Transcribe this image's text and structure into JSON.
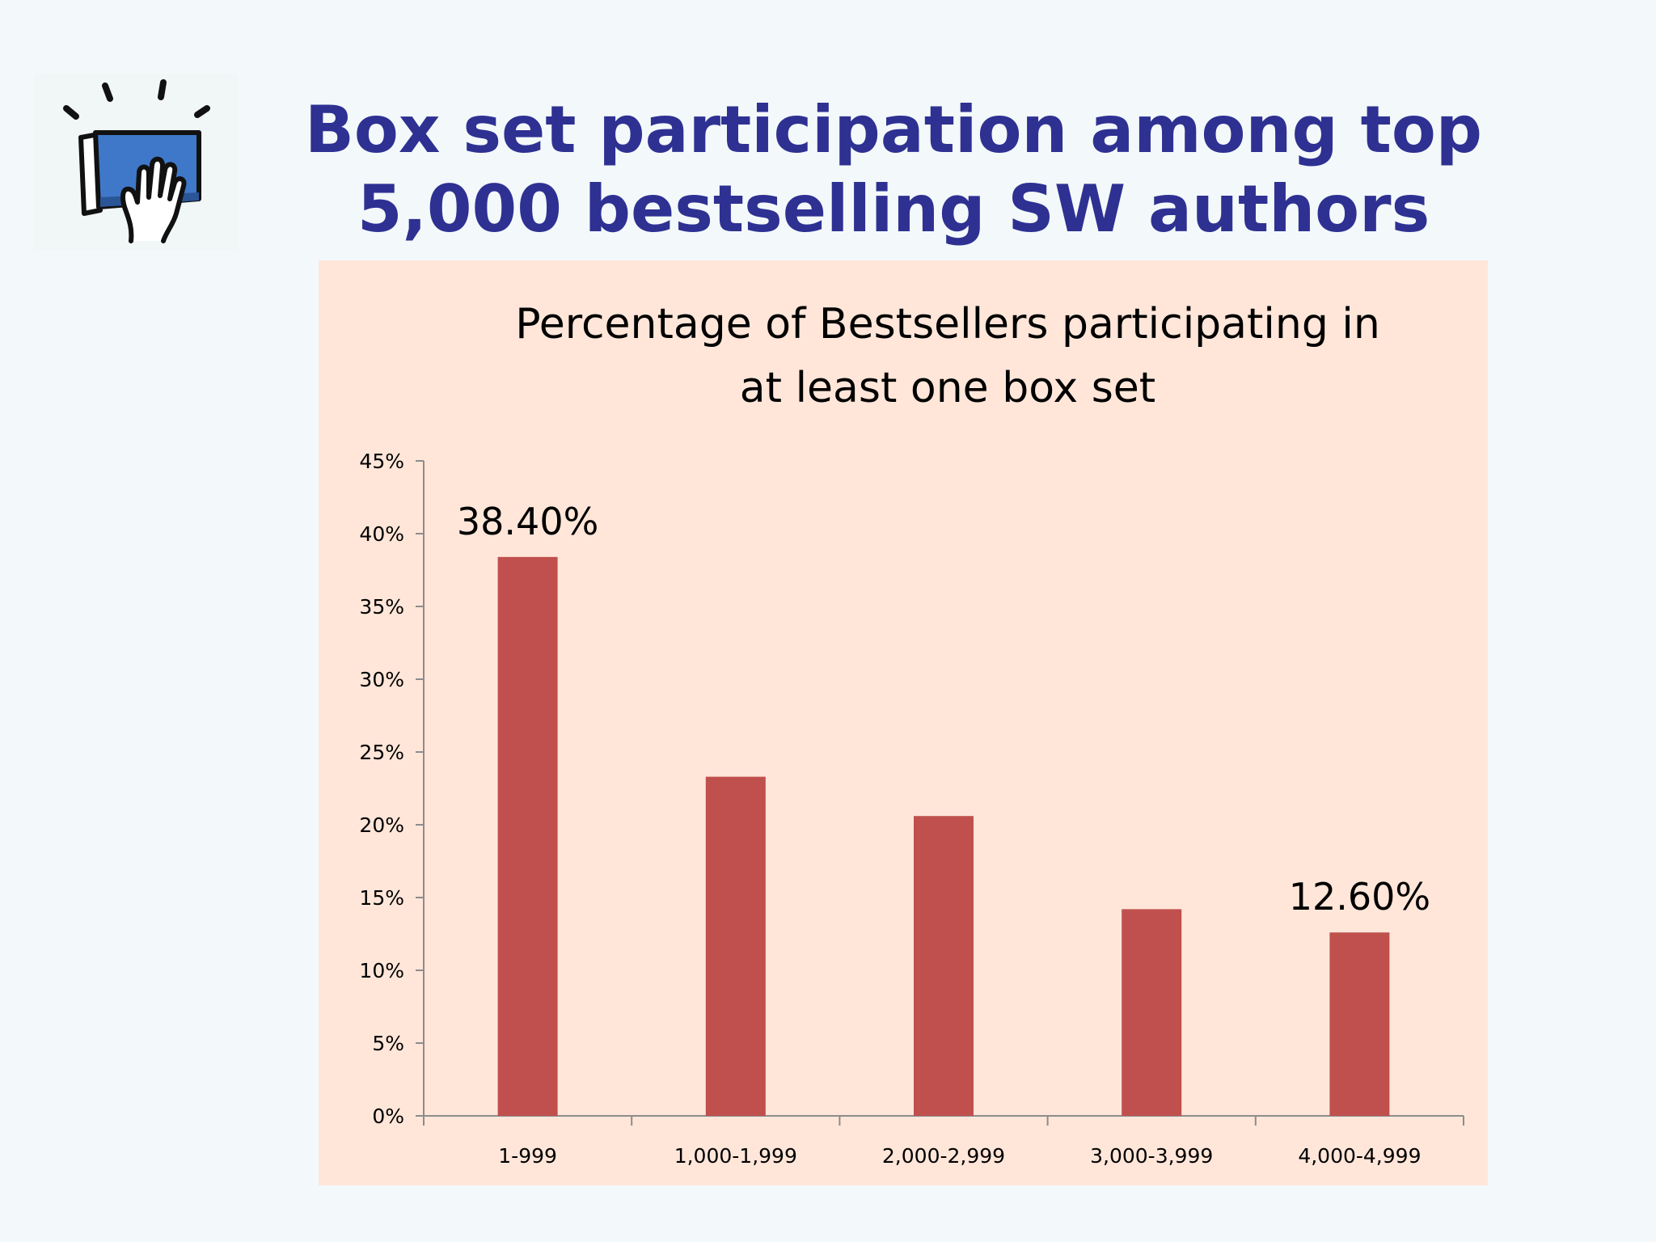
{
  "slide": {
    "title_line1": "Box set participation among top",
    "title_line2": "5,000 bestselling SW authors",
    "title_color": "#2e3192",
    "logo_icon": "book-hand-raise-icon"
  },
  "colors": {
    "panel_background": "#ffe6d9",
    "bar_fill": "#c0504d",
    "axis": "#8c8c8c"
  },
  "chart_data": {
    "type": "bar",
    "title_lines": [
      "Percentage of Bestsellers participating in",
      "at least one box set"
    ],
    "categories": [
      "1-999",
      "1,000-1,999",
      "2,000-2,999",
      "3,000-3,999",
      "4,000-4,999"
    ],
    "values": [
      38.4,
      23.3,
      20.6,
      14.2,
      12.6
    ],
    "data_labels": [
      "38.40%",
      "",
      "",
      "",
      "12.60%"
    ],
    "yticks": [
      "0%",
      "5%",
      "10%",
      "15%",
      "20%",
      "25%",
      "30%",
      "35%",
      "40%",
      "45%"
    ],
    "ylim": [
      0,
      45
    ],
    "xlabel": "",
    "ylabel": "",
    "grid": false,
    "legend": false
  }
}
